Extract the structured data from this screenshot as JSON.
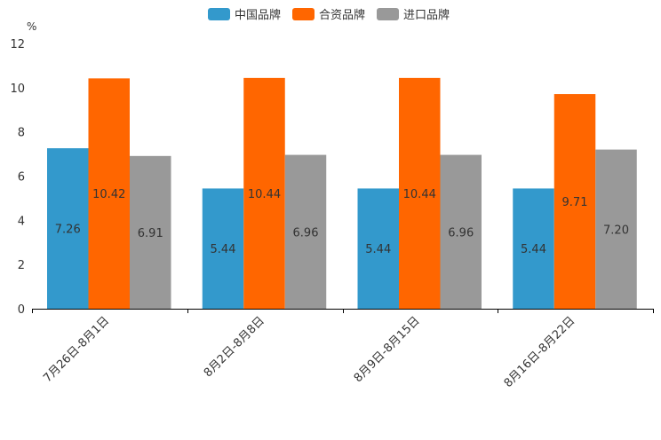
{
  "chart_data": {
    "type": "bar",
    "unit": "%",
    "categories": [
      "7月26日-8月1日",
      "8月2日-8月8日",
      "8月9日-8月15日",
      "8月16日-8月22日"
    ],
    "series": [
      {
        "name": "中国品牌",
        "color": "#3399cc",
        "values": [
          7.26,
          5.44,
          5.44,
          5.44
        ],
        "labels": [
          "7.26",
          "5.44",
          "5.44",
          "5.44"
        ]
      },
      {
        "name": "合资品牌",
        "color": "#ff6600",
        "values": [
          10.42,
          10.44,
          10.44,
          9.71
        ],
        "labels": [
          "10.42",
          "10.44",
          "10.44",
          "9.71"
        ]
      },
      {
        "name": "进口品牌",
        "color": "#999999",
        "values": [
          6.91,
          6.96,
          6.96,
          7.2
        ],
        "labels": [
          "6.91",
          "6.96",
          "6.96",
          "7.20"
        ]
      }
    ],
    "ylim": [
      0,
      12
    ],
    "yticks": [
      "0",
      "2",
      "4",
      "6",
      "8",
      "10",
      "12"
    ],
    "legend_position": "top-center",
    "grid": false
  }
}
